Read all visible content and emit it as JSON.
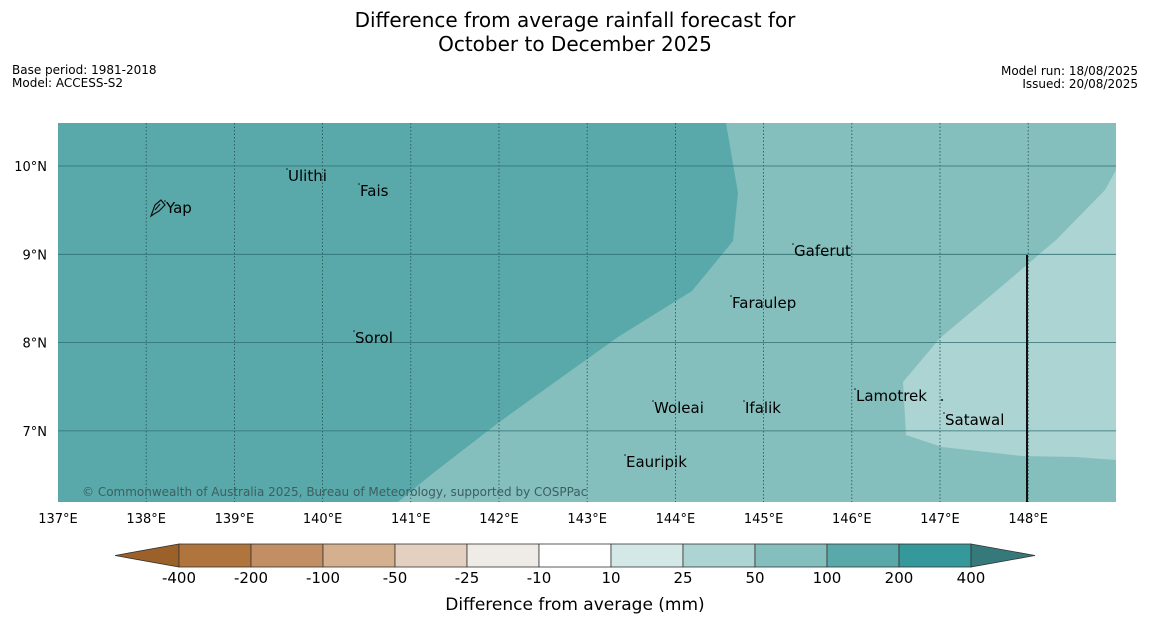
{
  "header": {
    "title_line1": "Difference from average rainfall forecast for",
    "title_line2": "October to December 2025",
    "base_period": "Base period: 1981-2018",
    "model": "Model: ACCESS-S2",
    "model_run": "Model run: 18/08/2025",
    "issued": "Issued: 20/08/2025"
  },
  "map": {
    "lon_labels": [
      "137°E",
      "138°E",
      "139°E",
      "140°E",
      "141°E",
      "142°E",
      "143°E",
      "144°E",
      "145°E",
      "146°E",
      "147°E",
      "148°E"
    ],
    "lat_labels": [
      "10°N",
      "9°N",
      "8°N",
      "7°N"
    ],
    "places": [
      {
        "name": "Yap"
      },
      {
        "name": "Ulithi"
      },
      {
        "name": "Fais"
      },
      {
        "name": "Gaferut"
      },
      {
        "name": "Faraulep"
      },
      {
        "name": "Sorol"
      },
      {
        "name": "Lamotrek"
      },
      {
        "name": "Woleai"
      },
      {
        "name": "Ifalik"
      },
      {
        "name": "Satawal"
      },
      {
        "name": "Eauripik"
      }
    ],
    "copyright": "© Commonwealth of Australia 2025, Bureau of Meteorology, supported by COSPPac",
    "colors": {
      "c100_200": "#5aa9aa",
      "c50_100": "#84bebd",
      "c25_50": "#acd4d3"
    }
  },
  "legend": {
    "tick_labels": [
      "-400",
      "-200",
      "-100",
      "-50",
      "-25",
      "-10",
      "10",
      "25",
      "50",
      "100",
      "200",
      "400"
    ],
    "colors": [
      "#9c6128",
      "#b0753c",
      "#c28f65",
      "#d5b08f",
      "#e4d0c0",
      "#efebe6",
      "#ffffff",
      "#d4e8e7",
      "#acd4d3",
      "#84bebd",
      "#5aa9aa",
      "#35989a",
      "#36797a"
    ],
    "label": "Difference from average (mm)"
  }
}
